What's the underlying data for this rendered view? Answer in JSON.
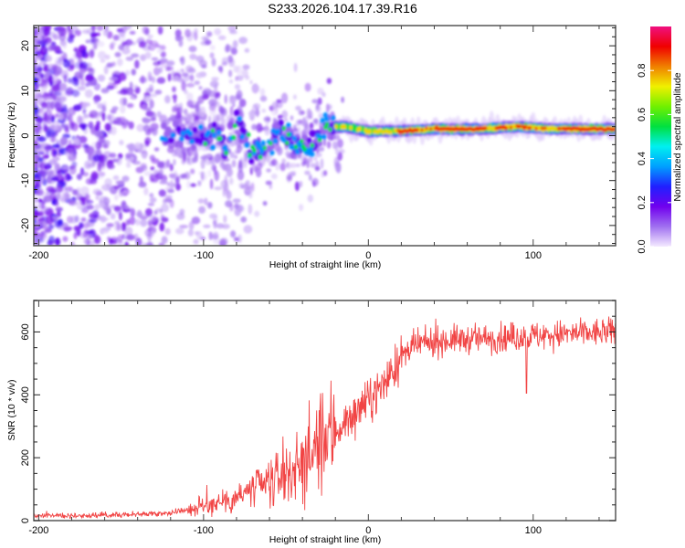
{
  "title": "S233.2026.104.17.39.R16",
  "chart_data": [
    {
      "type": "heatmap",
      "name": "spectrogram",
      "xlabel": "Height of straight line (km)",
      "ylabel": "Frequency (Hz)",
      "xlim": [
        -203,
        150
      ],
      "ylim": [
        -24.5,
        24.5
      ],
      "xticks": [
        -200,
        -100,
        0,
        100
      ],
      "xtick_labels": [
        "-200",
        "-100",
        "0",
        "100"
      ],
      "yticks": [
        -20,
        -10,
        0,
        10,
        20
      ],
      "ytick_labels": [
        "-20",
        "-10",
        "0",
        "10",
        "20"
      ],
      "colorbar": {
        "label": "Normalized spectral amplitude",
        "range": [
          0,
          1
        ],
        "ticks": [
          0.0,
          0.2,
          0.4,
          0.6,
          0.8
        ],
        "tick_labels": [
          "0.0",
          "0.2",
          "0.4",
          "0.6",
          "0.8"
        ],
        "colors": [
          "#f4eaff",
          "#a070f0",
          "#7000ee",
          "#2020ff",
          "#00a0ff",
          "#00f0f0",
          "#00e040",
          "#70f000",
          "#f0f000",
          "#f08000",
          "#f00000",
          "#f01080"
        ]
      },
      "ridge": {
        "description_points_km_hz": [
          [
            -120,
            0
          ],
          [
            -100,
            0
          ],
          [
            -92,
            1
          ],
          [
            -85,
            -4
          ],
          [
            -80,
            4
          ],
          [
            -72,
            -3
          ],
          [
            -62,
            -4
          ],
          [
            -55,
            2
          ],
          [
            -45,
            -2
          ],
          [
            -35,
            -3
          ],
          [
            -25,
            2
          ],
          [
            -15,
            2
          ],
          [
            0,
            1
          ],
          [
            20,
            1
          ],
          [
            40,
            1.5
          ],
          [
            70,
            1.5
          ],
          [
            90,
            2
          ],
          [
            110,
            1.5
          ],
          [
            150,
            1.5
          ]
        ]
      }
    },
    {
      "type": "line",
      "name": "snr",
      "xlabel": "Height of straight line (km)",
      "ylabel": "SNR (10 * v/v)",
      "xlim": [
        -203,
        150
      ],
      "ylim": [
        0,
        700
      ],
      "xticks": [
        -200,
        -100,
        0,
        100
      ],
      "xtick_labels": [
        "-200",
        "-100",
        "0",
        "100"
      ],
      "yticks": [
        0,
        200,
        400,
        600
      ],
      "ytick_labels": [
        "0",
        "200",
        "400",
        "600"
      ],
      "color": "#f03030",
      "envelope_km_snr": [
        [
          -203,
          15
        ],
        [
          -150,
          18
        ],
        [
          -120,
          25
        ],
        [
          -100,
          45
        ],
        [
          -80,
          75
        ],
        [
          -60,
          120
        ],
        [
          -40,
          180
        ],
        [
          -25,
          260
        ],
        [
          -10,
          330
        ],
        [
          0,
          380
        ],
        [
          10,
          440
        ],
        [
          20,
          520
        ],
        [
          30,
          560
        ],
        [
          50,
          575
        ],
        [
          80,
          580
        ],
        [
          110,
          590
        ],
        [
          150,
          600
        ]
      ]
    }
  ]
}
